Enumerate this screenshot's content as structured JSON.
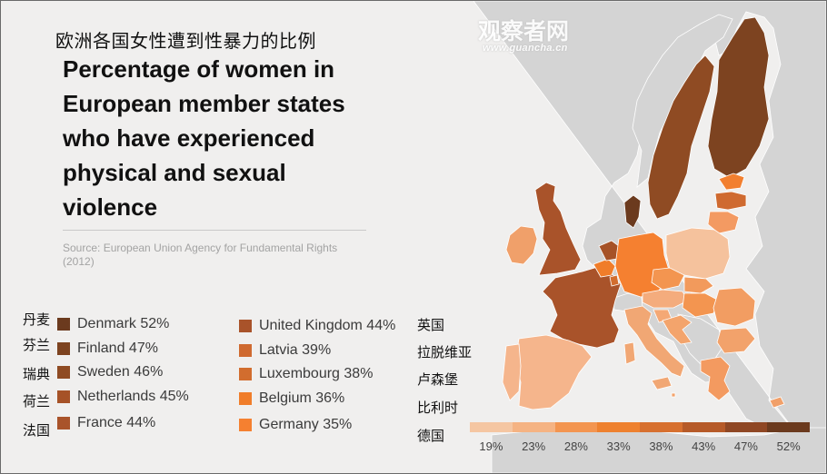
{
  "title_cn": "欧洲各国女性遭到性暴力的比例",
  "title_en": "Percentage of women in European member states who have experienced physical and sexual violence",
  "source": "Source: European Union Agency for Fundamental Rights (2012)",
  "watermark": {
    "logo_text": "观察者网",
    "url_text": "www.guancha.cn"
  },
  "legend_left": [
    {
      "cn": "丹麦",
      "label": "Denmark 52%",
      "color": "#6b3a1e"
    },
    {
      "cn": "芬兰",
      "label": "Finland  47%",
      "color": "#7d4320"
    },
    {
      "cn": "瑞典",
      "label": "Sweden 46%",
      "color": "#8f4b23"
    },
    {
      "cn": "荷兰",
      "label": "Netherlands 45%",
      "color": "#a65227"
    },
    {
      "cn": "法国",
      "label": "France 44%",
      "color": "#a9532a"
    }
  ],
  "legend_right": [
    {
      "cn": "英国",
      "label": "United Kingdom 44%",
      "color": "#a9532a"
    },
    {
      "cn": "拉脱维亚",
      "label": "Latvia 39%",
      "color": "#cf6a30"
    },
    {
      "cn": "卢森堡",
      "label": "Luxembourg 38%",
      "color": "#d26d2e"
    },
    {
      "cn": "比利时",
      "label": "Belgium 36%",
      "color": "#f07d2a"
    },
    {
      "cn": "德国",
      "label": "Germany 35%",
      "color": "#f58030"
    }
  ],
  "scale": {
    "ticks": [
      "19%",
      "23%",
      "28%",
      "33%",
      "38%",
      "43%",
      "47%",
      "52%"
    ],
    "colors": [
      "#f5c6a2",
      "#f5b383",
      "#f39550",
      "#ee812f",
      "#d7702f",
      "#b65a28",
      "#8f4724",
      "#6b3a1e"
    ]
  },
  "country_colors": {
    "nonmember": "#d4d4d4",
    "sea": "#f0efee",
    "denmark": "#6b3a1e",
    "finland": "#7d4320",
    "sweden": "#8f4b23",
    "netherlands": "#a65227",
    "france": "#a9532a",
    "united_kingdom": "#a9532a",
    "latvia": "#cf6a30",
    "luxembourg": "#d26d2e",
    "belgium": "#f07d2a",
    "germany": "#f58030",
    "ireland": "#f0a06a",
    "spain": "#f5b58c",
    "portugal": "#f5b58c",
    "italy": "#f1a774",
    "poland": "#f5c29d",
    "estonia": "#f27f2f",
    "lithuania": "#f39a62",
    "czech": "#f39550",
    "slovakia": "#f29a5c",
    "austria": "#f4ac7d",
    "hungary": "#f39550",
    "romania": "#f29d62",
    "bulgaria": "#f2a26b",
    "greece": "#f39a60",
    "slovenia": "#f4a875",
    "croatia": "#f3a46c",
    "cyprus": "#f1a06a",
    "malta": "#f3a46c"
  }
}
